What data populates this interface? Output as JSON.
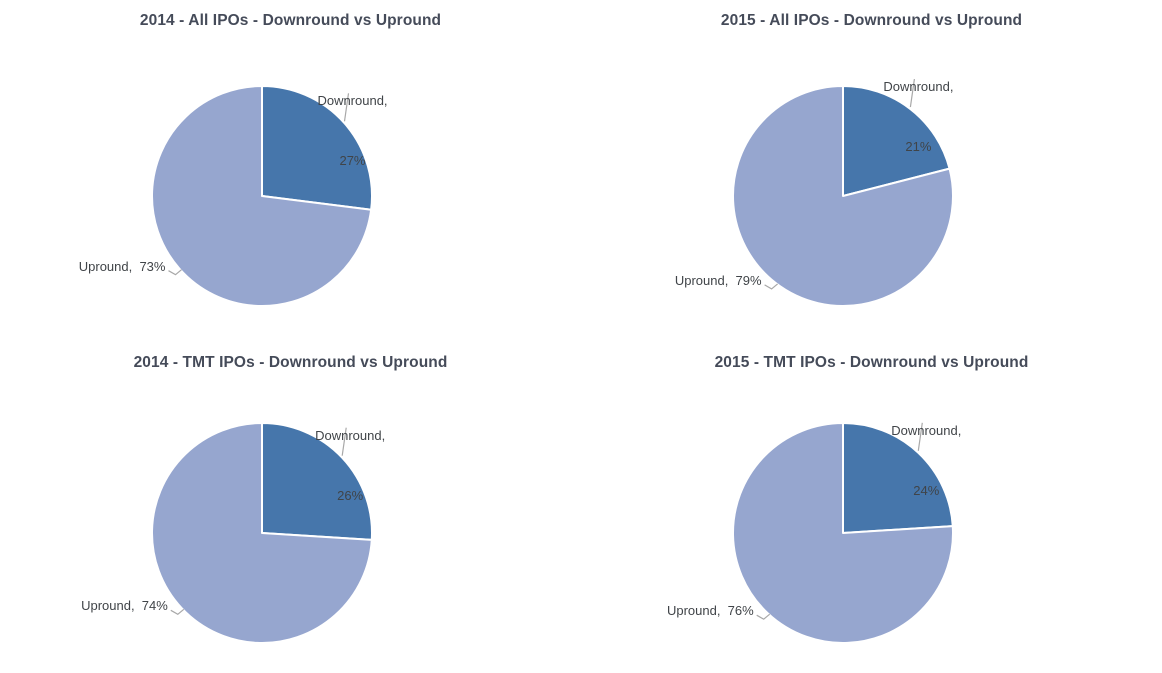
{
  "page": {
    "background": "#ffffff"
  },
  "palette": {
    "downround_color": "#4676AB",
    "upround_color": "#96A6CF",
    "slice_border_color": "#FFFFFF",
    "title_color": "#454B59",
    "label_color": "#404448",
    "leader_line_color": "#A8A8A8"
  },
  "chart_data": [
    {
      "type": "pie",
      "title": "2014 - All IPOs - Downround vs Upround",
      "labels": [
        "Downround",
        "Upround"
      ],
      "values": [
        27,
        73
      ],
      "colors": [
        "#4676AB",
        "#96A6CF"
      ],
      "legend": "none",
      "start_angle_deg": 0,
      "direction": "clockwise",
      "data_labels": {
        "downround_line1": "Downround,",
        "downround_line2": "27%",
        "upround": "Upround,  73%"
      }
    },
    {
      "type": "pie",
      "title": "2015 - All IPOs - Downround vs Upround",
      "labels": [
        "Downround",
        "Upround"
      ],
      "values": [
        21,
        79
      ],
      "colors": [
        "#4676AB",
        "#96A6CF"
      ],
      "legend": "none",
      "start_angle_deg": 0,
      "direction": "clockwise",
      "data_labels": {
        "downround_line1": "Downround,",
        "downround_line2": "21%",
        "upround": "Upround,  79%"
      }
    },
    {
      "type": "pie",
      "title": "2014 - TMT IPOs - Downround vs Upround",
      "labels": [
        "Downround",
        "Upround"
      ],
      "values": [
        26,
        74
      ],
      "colors": [
        "#4676AB",
        "#96A6CF"
      ],
      "legend": "none",
      "start_angle_deg": 0,
      "direction": "clockwise",
      "data_labels": {
        "downround_line1": "Downround,",
        "downround_line2": "26%",
        "upround": "Upround,  74%"
      }
    },
    {
      "type": "pie",
      "title": "2015 - TMT IPOs - Downround vs Upround",
      "labels": [
        "Downround",
        "Upround"
      ],
      "values": [
        24,
        76
      ],
      "colors": [
        "#4676AB",
        "#96A6CF"
      ],
      "legend": "none",
      "start_angle_deg": 0,
      "direction": "clockwise",
      "data_labels": {
        "downround_line1": "Downround,",
        "downround_line2": "24%",
        "upround": "Upround,  76%"
      }
    }
  ]
}
